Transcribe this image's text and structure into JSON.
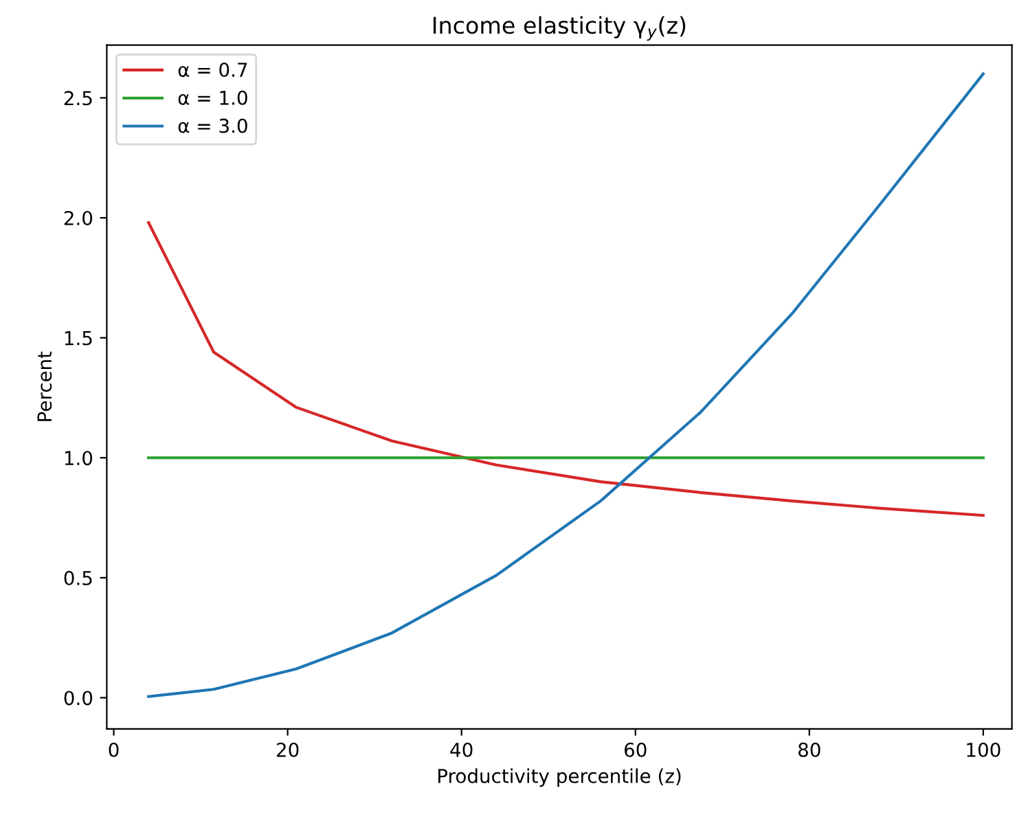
{
  "chart_data": {
    "type": "line",
    "title": "Income elasticity γ$_{y}$(z)",
    "xlabel": "Productivity percentile (z)",
    "ylabel": "Percent",
    "x": [
      4,
      11.5,
      21,
      32,
      44,
      56,
      67.5,
      78,
      88,
      100
    ],
    "series": [
      {
        "name": "α = 0.7",
        "color": "#d62728",
        "values": [
          1.98,
          1.44,
          1.21,
          1.07,
          0.97,
          0.9,
          0.855,
          0.82,
          0.79,
          0.76
        ]
      },
      {
        "name": "α = 1.0",
        "color": "#2ca02c",
        "values": [
          1.0,
          1.0,
          1.0,
          1.0,
          1.0,
          1.0,
          1.0,
          1.0,
          1.0,
          1.0
        ]
      },
      {
        "name": "α = 3.0",
        "color": "#1f77b4",
        "values": [
          0.005,
          0.035,
          0.12,
          0.27,
          0.51,
          0.82,
          1.19,
          1.6,
          2.05,
          2.6
        ]
      }
    ],
    "xlim": [
      -0.8,
      103.3
    ],
    "ylim": [
      -0.13,
      2.72
    ],
    "xticks": [
      0,
      20,
      40,
      60,
      80,
      100
    ],
    "yticks": [
      {
        "value": 0,
        "label": "0.0"
      },
      0.5,
      {
        "value": 1,
        "label": "1.0"
      },
      1.5,
      {
        "value": 2,
        "label": "2.0"
      },
      2.5
    ],
    "legend": "top left",
    "grid": false
  }
}
